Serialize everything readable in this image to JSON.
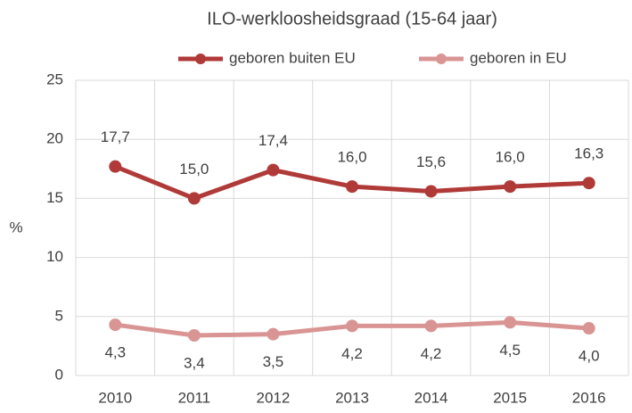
{
  "chart_data": {
    "type": "line",
    "title": "ILO-werkloosheidsgraad (15-64 jaar)",
    "y_label": "%",
    "categories": [
      "2010",
      "2011",
      "2012",
      "2013",
      "2014",
      "2015",
      "2016"
    ],
    "series": [
      {
        "name": "geboren buiten EU",
        "color": "#b03a38",
        "values": [
          17.7,
          15.0,
          17.4,
          16.0,
          15.6,
          16.0,
          16.3
        ],
        "value_labels": [
          "17,7",
          "15,0",
          "17,4",
          "16,0",
          "15,6",
          "16,0",
          "16,3"
        ]
      },
      {
        "name": "geboren in EU",
        "color": "#d99594",
        "values": [
          4.3,
          3.4,
          3.5,
          4.2,
          4.2,
          4.5,
          4.0
        ],
        "value_labels": [
          "4,3",
          "3,4",
          "3,5",
          "4,2",
          "4,2",
          "4,5",
          "4,0"
        ]
      }
    ],
    "ylim": [
      0,
      25
    ],
    "yticks": [
      0,
      5,
      10,
      15,
      20,
      25
    ],
    "grid": true,
    "legend": "top"
  }
}
